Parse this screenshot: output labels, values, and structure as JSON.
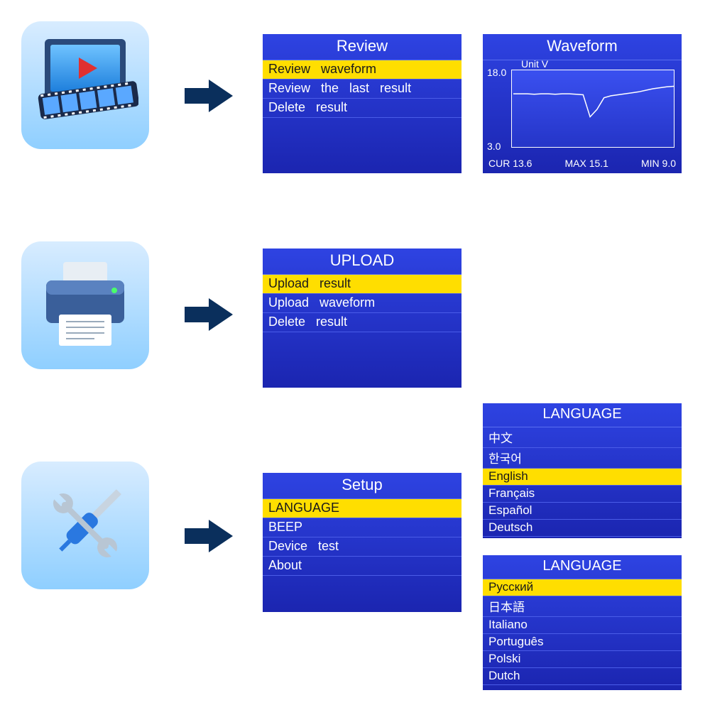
{
  "colors": {
    "panel_grad_top": "#2e43e2",
    "panel_grad_bot": "#1b25b0",
    "highlight": "#ffde00",
    "highlight_text": "#1a1a1a",
    "panel_text": "#ffffff",
    "divider": "#4a5ce8",
    "arrow": "#0a2f5c",
    "icon_tile_top": "#d8ecff",
    "icon_tile_bot": "#8fcfff"
  },
  "icons": {
    "review": "media-player-icon",
    "upload": "printer-icon",
    "setup": "tools-icon"
  },
  "review_panel": {
    "title": "Review",
    "items": [
      {
        "label": "Review   waveform",
        "selected": true
      },
      {
        "label": "Review   the   last   result",
        "selected": false
      },
      {
        "label": "Delete   result",
        "selected": false
      }
    ]
  },
  "waveform_panel": {
    "title": "Waveform",
    "unit_label": "Unit   V",
    "y_max_label": "18.0",
    "y_min_label": "3.0",
    "ylim": [
      3.0,
      18.0
    ],
    "line_color": "#ffffff",
    "background_color": "#2e43e2",
    "series": [
      13.6,
      13.6,
      13.6,
      13.5,
      13.6,
      13.6,
      13.5,
      13.6,
      13.6,
      13.5,
      13.4,
      9.0,
      10.5,
      12.8,
      13.2,
      13.4,
      13.6,
      13.8,
      14.0,
      14.3,
      14.6,
      14.8,
      15.0,
      15.1
    ],
    "stats": {
      "cur_label": "CUR 13.6",
      "max_label": "MAX 15.1",
      "min_label": "MIN 9.0"
    }
  },
  "upload_panel": {
    "title": "UPLOAD",
    "items": [
      {
        "label": "Upload   result",
        "selected": true
      },
      {
        "label": "Upload   waveform",
        "selected": false
      },
      {
        "label": "Delete   result",
        "selected": false
      }
    ]
  },
  "setup_panel": {
    "title": "Setup",
    "items": [
      {
        "label": "LANGUAGE",
        "selected": true
      },
      {
        "label": "BEEP",
        "selected": false
      },
      {
        "label": "Device   test",
        "selected": false
      },
      {
        "label": "About",
        "selected": false
      }
    ]
  },
  "language_panel_1": {
    "title": "LANGUAGE",
    "items": [
      {
        "label": "中文",
        "selected": false
      },
      {
        "label": "한국어",
        "selected": false
      },
      {
        "label": "English",
        "selected": true
      },
      {
        "label": "Français",
        "selected": false
      },
      {
        "label": "Español",
        "selected": false
      },
      {
        "label": "Deutsch",
        "selected": false
      }
    ]
  },
  "language_panel_2": {
    "title": "LANGUAGE",
    "items": [
      {
        "label": "Русский",
        "selected": true
      },
      {
        "label": "日本語",
        "selected": false
      },
      {
        "label": "Italiano",
        "selected": false
      },
      {
        "label": "Português",
        "selected": false
      },
      {
        "label": "Polski",
        "selected": false
      },
      {
        "label": "Dutch",
        "selected": false
      }
    ]
  }
}
